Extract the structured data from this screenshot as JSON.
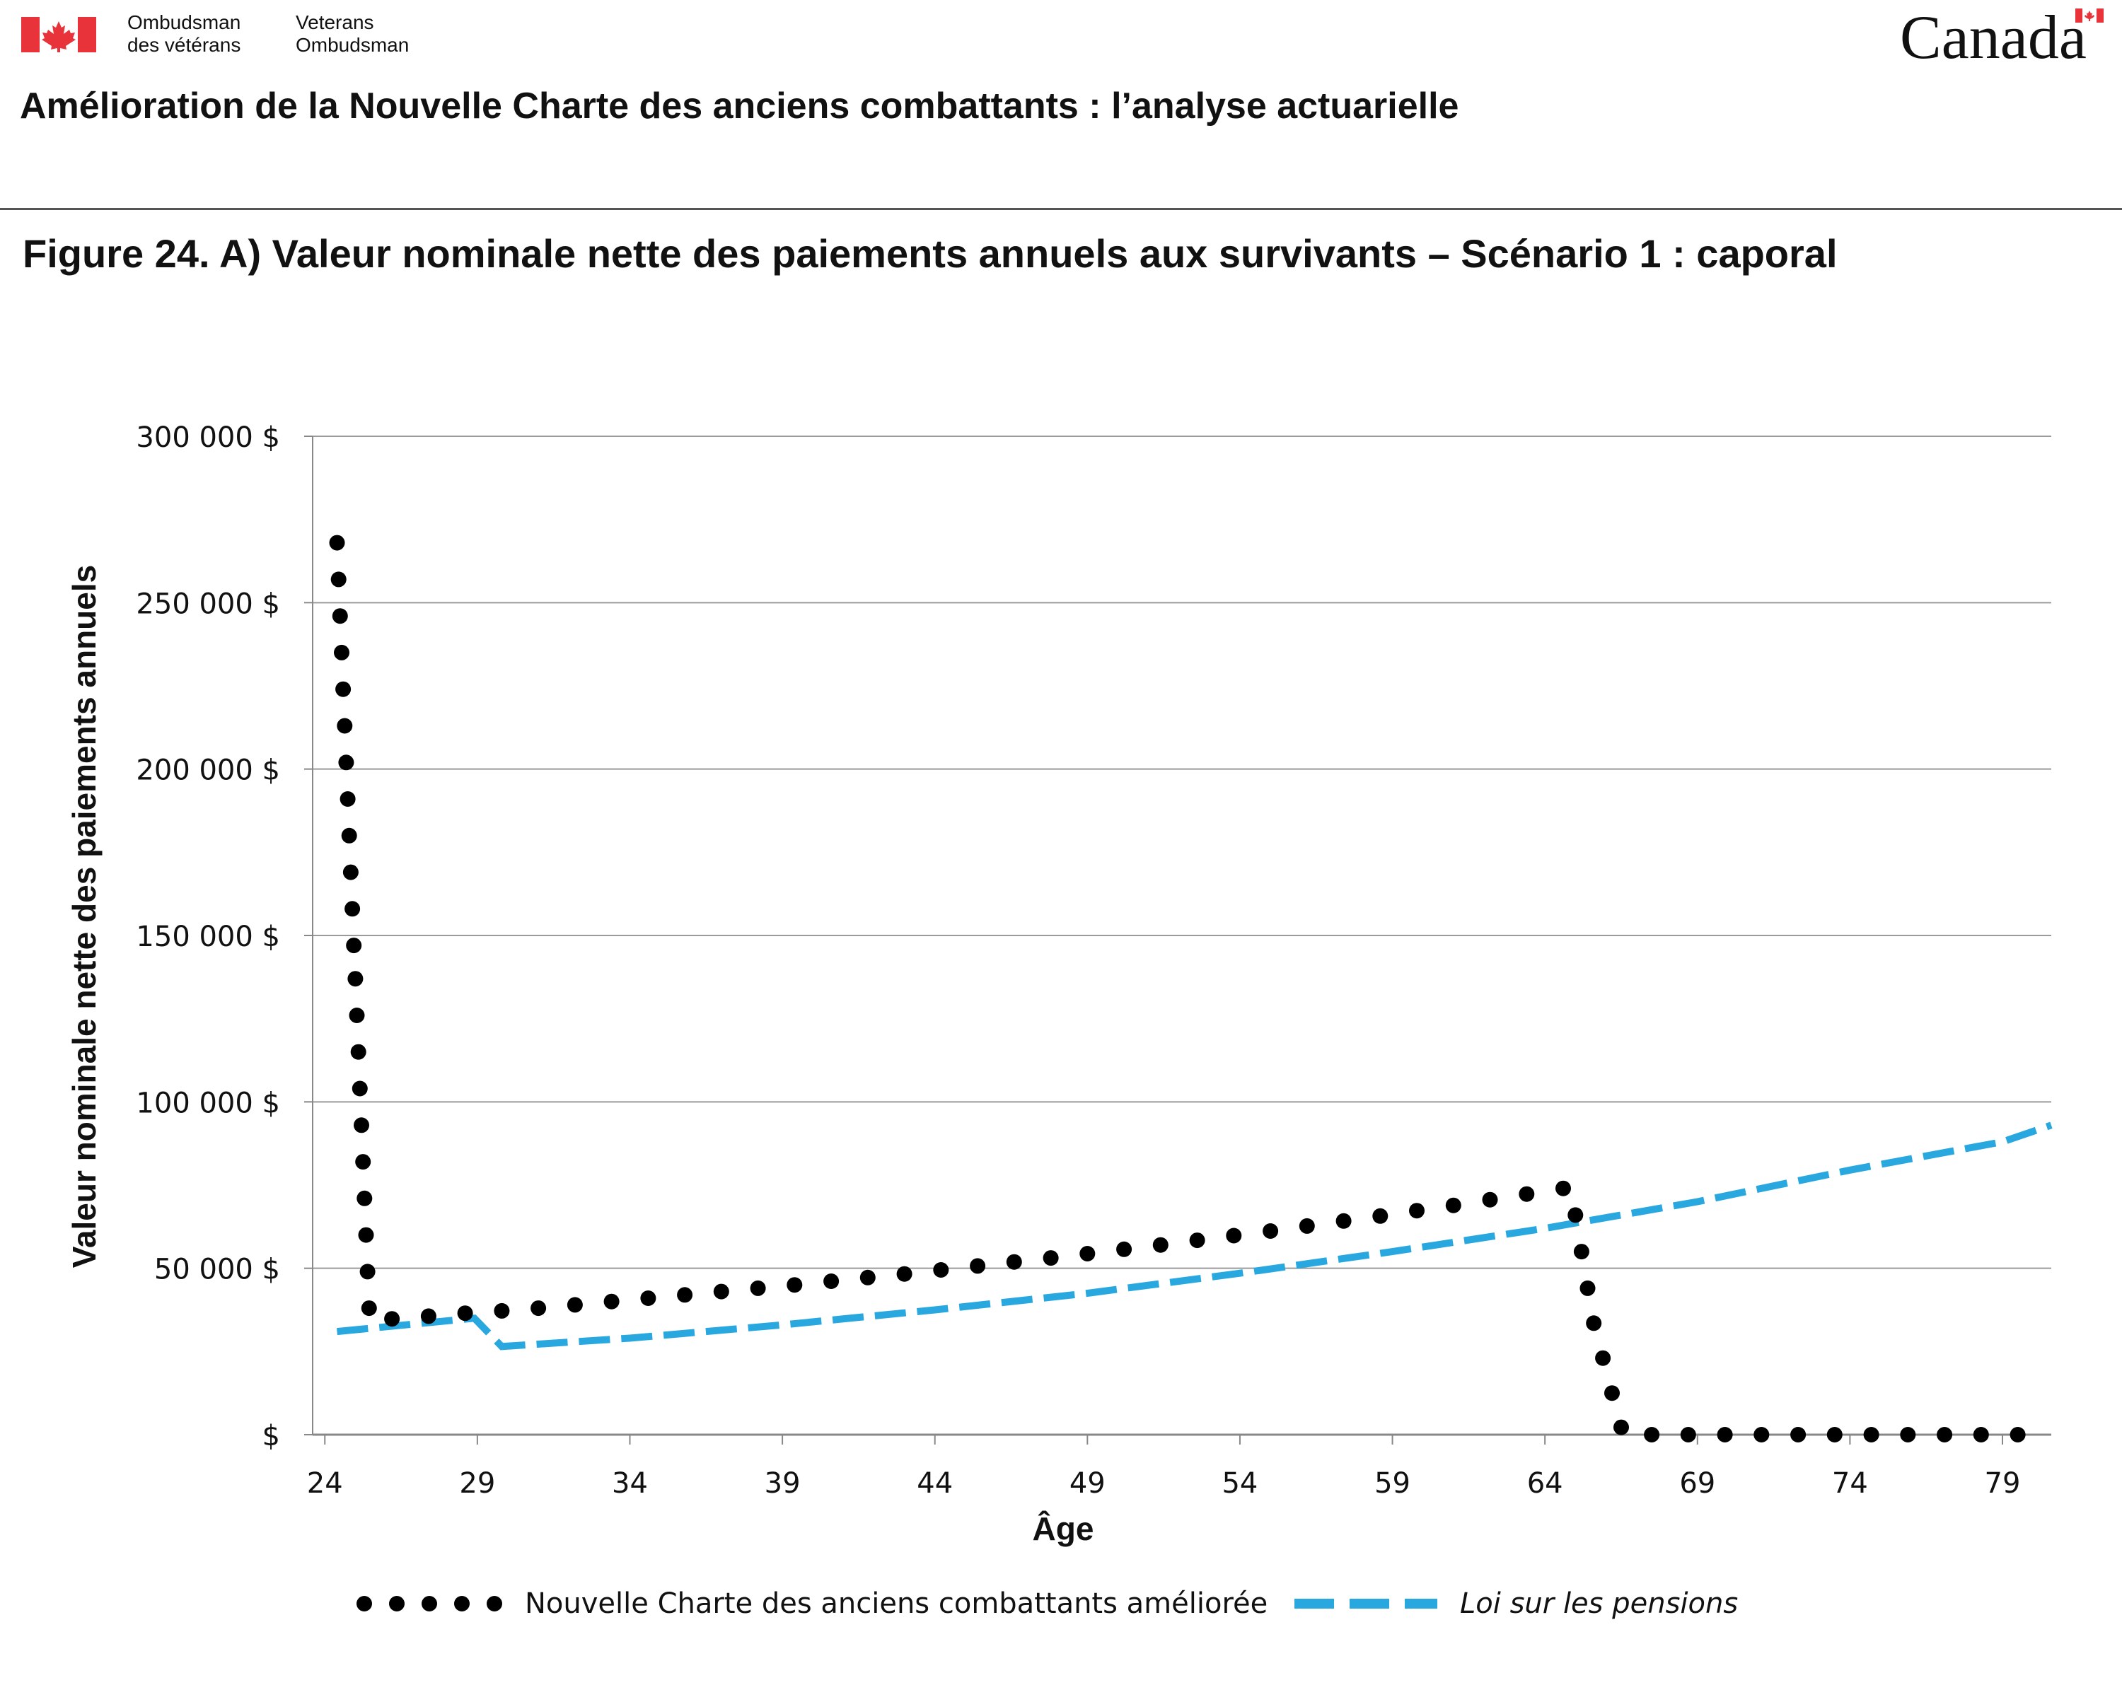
{
  "header": {
    "dept_fr_line1": "Ombudsman",
    "dept_fr_line2": "des vétérans",
    "dept_en_line1": "Veterans",
    "dept_en_line2": "Ombudsman",
    "wordmark": "Canada",
    "colors": {
      "flag_red": "#e8333a"
    }
  },
  "document_title": "Amélioration de la Nouvelle Charte des anciens combattants : l’analyse actuarielle",
  "figure_title": "Figure 24. A) Valeur nominale nette des paiements annuels aux survivants – Scénario 1 : caporal",
  "chart_data": {
    "type": "line",
    "title": "Figure 24. A) Valeur nominale nette des paiements annuels aux survivants – Scénario 1 : caporal",
    "xlabel": "Âge",
    "ylabel": "Valeur nominale nette des paiements annuels",
    "xlim": [
      23.6,
      80.6
    ],
    "ylim": [
      0,
      300000
    ],
    "x_ticks": [
      24,
      29,
      34,
      39,
      44,
      49,
      54,
      59,
      64,
      69,
      74,
      79
    ],
    "x_tick_labels": [
      "24",
      "29",
      "34",
      "39",
      "44",
      "49",
      "54",
      "59",
      "64",
      "69",
      "74",
      "79"
    ],
    "y_ticks": [
      0,
      50000,
      100000,
      150000,
      200000,
      250000,
      300000
    ],
    "y_tick_labels": [
      "$",
      "50 000 $",
      "100 000 $",
      "150 000 $",
      "200 000 $",
      "250 000 $",
      "300 000 $"
    ],
    "grid": "horizontal",
    "legend_position": "bottom",
    "series": [
      {
        "name": "Nouvelle Charte des anciens combattants améliorée",
        "style": "dotted",
        "color": "#000000",
        "points": [
          [
            24.4,
            268000
          ],
          [
            24.45,
            257000
          ],
          [
            24.5,
            246000
          ],
          [
            24.55,
            235000
          ],
          [
            24.6,
            224000
          ],
          [
            24.65,
            213000
          ],
          [
            24.7,
            202000
          ],
          [
            24.75,
            191000
          ],
          [
            24.8,
            180000
          ],
          [
            24.85,
            169000
          ],
          [
            24.9,
            158000
          ],
          [
            24.95,
            147000
          ],
          [
            25.0,
            137000
          ],
          [
            25.05,
            126000
          ],
          [
            25.1,
            115000
          ],
          [
            25.15,
            104000
          ],
          [
            25.2,
            93000
          ],
          [
            25.25,
            82000
          ],
          [
            25.3,
            71000
          ],
          [
            25.35,
            60000
          ],
          [
            25.4,
            49000
          ],
          [
            25.45,
            38000
          ],
          [
            26.2,
            34800
          ],
          [
            27.4,
            35600
          ],
          [
            28.6,
            36500
          ],
          [
            29.8,
            37200
          ],
          [
            31.0,
            38000
          ],
          [
            32.2,
            39000
          ],
          [
            33.4,
            40000
          ],
          [
            34.6,
            41000
          ],
          [
            35.8,
            42000
          ],
          [
            37.0,
            43000
          ],
          [
            38.2,
            44000
          ],
          [
            39.4,
            45000
          ],
          [
            40.6,
            46100
          ],
          [
            41.8,
            47200
          ],
          [
            43.0,
            48300
          ],
          [
            44.2,
            49500
          ],
          [
            45.4,
            50700
          ],
          [
            46.6,
            51900
          ],
          [
            47.8,
            53100
          ],
          [
            49.0,
            54400
          ],
          [
            50.2,
            55700
          ],
          [
            51.4,
            57000
          ],
          [
            52.6,
            58400
          ],
          [
            53.8,
            59800
          ],
          [
            55.0,
            61200
          ],
          [
            56.2,
            62700
          ],
          [
            57.4,
            64200
          ],
          [
            58.6,
            65700
          ],
          [
            59.8,
            67300
          ],
          [
            61.0,
            68900
          ],
          [
            62.2,
            70600
          ],
          [
            63.4,
            72300
          ],
          [
            64.6,
            74000
          ],
          [
            65.0,
            66000
          ],
          [
            65.2,
            55000
          ],
          [
            65.4,
            44000
          ],
          [
            65.6,
            33500
          ],
          [
            65.9,
            23000
          ],
          [
            66.2,
            12500
          ],
          [
            66.5,
            2200
          ],
          [
            67.5,
            0
          ],
          [
            68.7,
            0
          ],
          [
            69.9,
            0
          ],
          [
            71.1,
            0
          ],
          [
            72.3,
            0
          ],
          [
            73.5,
            0
          ],
          [
            74.7,
            0
          ],
          [
            75.9,
            0
          ],
          [
            77.1,
            0
          ],
          [
            78.3,
            0
          ],
          [
            79.5,
            0
          ]
        ]
      },
      {
        "name": "Loi sur les pensions",
        "style": "dashed",
        "color": "#29a8e0",
        "points": [
          [
            24.4,
            31000
          ],
          [
            28.9,
            35000
          ],
          [
            29.8,
            26500
          ],
          [
            34.0,
            29000
          ],
          [
            39.0,
            33000
          ],
          [
            44.0,
            37500
          ],
          [
            49.0,
            42500
          ],
          [
            54.0,
            48500
          ],
          [
            59.0,
            55000
          ],
          [
            64.0,
            62000
          ],
          [
            69.0,
            70000
          ],
          [
            74.0,
            79500
          ],
          [
            79.0,
            88000
          ],
          [
            80.6,
            93000
          ]
        ]
      }
    ]
  }
}
